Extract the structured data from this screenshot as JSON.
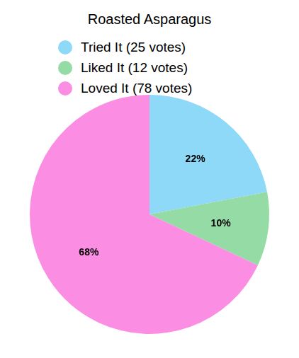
{
  "chart_data": {
    "type": "pie",
    "title": "Roasted Asparagus",
    "categories": [
      "Tried It (25 votes)",
      "Liked It (12 votes)",
      "Loved It (78 votes)"
    ],
    "values": [
      22,
      10,
      68
    ],
    "value_labels": [
      "22%",
      "10%",
      "68%"
    ],
    "colors": [
      "#8ed8f8",
      "#95dba5",
      "#fb8ee3"
    ],
    "data_labels": true,
    "legend": "top"
  }
}
